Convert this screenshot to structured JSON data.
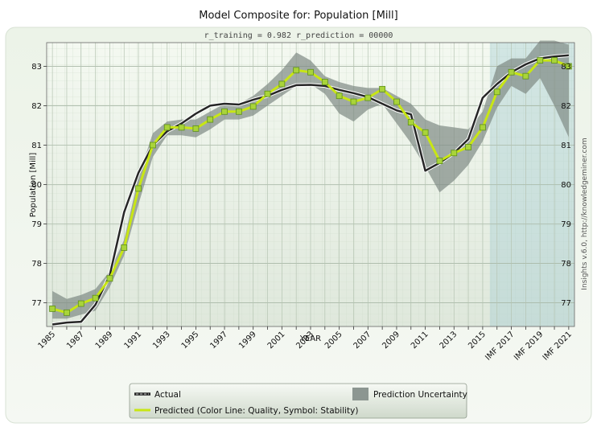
{
  "chart_data": {
    "type": "line",
    "title": "Model Composite for: Population [Mill]",
    "subtitle": "r_training = 0.982      r_prediction = 00000",
    "xlabel": "YEAR",
    "ylabel": "Population [Mill]",
    "credit": "Insights v.6.0, http://knowledgeminer.com",
    "ylim": [
      76.4,
      83.6
    ],
    "yticks": [
      77,
      78,
      79,
      80,
      81,
      82,
      83
    ],
    "x_start": 1985,
    "x_end": 2021,
    "forecast_start": 2016,
    "xtick_labels": [
      {
        "x": 1985,
        "label": "1985"
      },
      {
        "x": 1987,
        "label": "1987"
      },
      {
        "x": 1989,
        "label": "1989"
      },
      {
        "x": 1991,
        "label": "1991"
      },
      {
        "x": 1993,
        "label": "1993"
      },
      {
        "x": 1995,
        "label": "1995"
      },
      {
        "x": 1997,
        "label": "1997"
      },
      {
        "x": 1999,
        "label": "1999"
      },
      {
        "x": 2001,
        "label": "2001"
      },
      {
        "x": 2003,
        "label": "2003"
      },
      {
        "x": 2005,
        "label": "2005"
      },
      {
        "x": 2007,
        "label": "2007"
      },
      {
        "x": 2009,
        "label": "2009"
      },
      {
        "x": 2011,
        "label": "2011"
      },
      {
        "x": 2013,
        "label": "2013"
      },
      {
        "x": 2015,
        "label": "2015"
      },
      {
        "x": 2017,
        "label": "IMF 2017"
      },
      {
        "x": 2019,
        "label": "IMF 2019"
      },
      {
        "x": 2021,
        "label": "IMF 2021"
      }
    ],
    "series": [
      {
        "name": "Actual",
        "x": [
          1985,
          1986,
          1987,
          1988,
          1989,
          1990,
          1991,
          1992,
          1993,
          1994,
          1995,
          1996,
          1997,
          1998,
          1999,
          2000,
          2001,
          2002,
          2003,
          2004,
          2005,
          2006,
          2007,
          2008,
          2009,
          2010,
          2011,
          2012,
          2013,
          2014,
          2015,
          2016,
          2017,
          2018,
          2019,
          2020,
          2021
        ],
        "values": [
          76.45,
          76.5,
          76.52,
          76.95,
          77.7,
          79.3,
          80.3,
          81.0,
          81.35,
          81.55,
          81.8,
          82.0,
          82.05,
          82.03,
          82.15,
          82.25,
          82.4,
          82.52,
          82.53,
          82.5,
          82.4,
          82.32,
          82.22,
          82.05,
          81.88,
          81.78,
          80.35,
          80.55,
          80.8,
          81.15,
          82.2,
          82.55,
          82.85,
          83.05,
          83.2,
          83.25,
          83.28
        ]
      },
      {
        "name": "Predicted (Color Line: Quality, Symbol: Stability)",
        "x": [
          1985,
          1986,
          1987,
          1988,
          1989,
          1990,
          1991,
          1992,
          1993,
          1994,
          1995,
          1996,
          1997,
          1998,
          1999,
          2000,
          2001,
          2002,
          2003,
          2004,
          2005,
          2006,
          2007,
          2008,
          2009,
          2010,
          2011,
          2012,
          2013,
          2014,
          2015,
          2016,
          2017,
          2018,
          2019,
          2020,
          2021
        ],
        "values": [
          76.85,
          76.75,
          76.98,
          77.12,
          77.62,
          78.4,
          79.9,
          81.0,
          81.45,
          81.45,
          81.42,
          81.65,
          81.85,
          81.85,
          81.98,
          82.3,
          82.55,
          82.9,
          82.85,
          82.6,
          82.25,
          82.1,
          82.2,
          82.42,
          82.1,
          81.58,
          81.32,
          80.6,
          80.8,
          80.95,
          81.45,
          82.35,
          82.85,
          82.75,
          83.15,
          83.15,
          83.0
        ]
      }
    ],
    "uncertainty": {
      "label": "Prediction Uncertainty",
      "upper": [
        77.3,
        77.1,
        77.2,
        77.35,
        77.8,
        78.6,
        80.2,
        81.3,
        81.6,
        81.65,
        81.65,
        81.85,
        82.05,
        82.05,
        82.25,
        82.55,
        82.9,
        83.35,
        83.15,
        82.75,
        82.6,
        82.5,
        82.45,
        82.45,
        82.25,
        82.05,
        81.65,
        81.5,
        81.45,
        81.4,
        81.85,
        83.0,
        83.2,
        83.2,
        83.65,
        83.65,
        83.55
      ],
      "lower": [
        76.6,
        76.6,
        76.7,
        76.8,
        77.4,
        78.2,
        79.5,
        80.7,
        81.25,
        81.25,
        81.2,
        81.4,
        81.65,
        81.65,
        81.75,
        82.0,
        82.25,
        82.5,
        82.55,
        82.3,
        81.8,
        81.6,
        81.9,
        82.05,
        81.55,
        81.05,
        80.45,
        79.8,
        80.1,
        80.5,
        81.1,
        81.95,
        82.5,
        82.3,
        82.7,
        82.0,
        81.2
      ]
    },
    "legend": {
      "position": "bottom",
      "actual_label": "Actual",
      "predicted_label": "Predicted (Color Line: Quality, Symbol: Stability)",
      "uncertainty_label": "Prediction Uncertainty"
    }
  }
}
